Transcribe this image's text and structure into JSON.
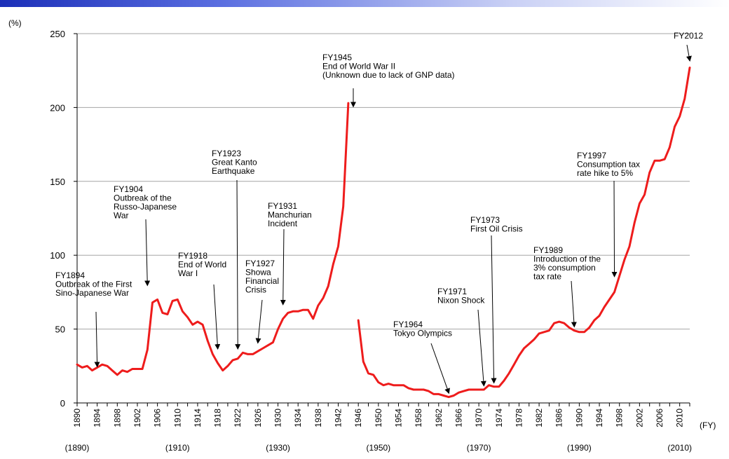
{
  "chart_data": {
    "type": "line",
    "ylabel": "(%)",
    "xlabel": "(FY)",
    "ylim": [
      0,
      250
    ],
    "xlim": [
      1890,
      2012
    ],
    "yticks": [
      0,
      50,
      100,
      150,
      200,
      250
    ],
    "xticks": [
      1890,
      1894,
      1898,
      1902,
      1906,
      1910,
      1914,
      1918,
      1922,
      1926,
      1930,
      1934,
      1938,
      1942,
      1946,
      1950,
      1954,
      1958,
      1962,
      1966,
      1970,
      1974,
      1978,
      1982,
      1986,
      1990,
      1994,
      1998,
      2002,
      2006,
      2010
    ],
    "decade_labels": [
      {
        "x": 1890,
        "text": "(1890)"
      },
      {
        "x": 1910,
        "text": "(1910)"
      },
      {
        "x": 1930,
        "text": "(1930)"
      },
      {
        "x": 1950,
        "text": "(1950)"
      },
      {
        "x": 1970,
        "text": "(1970)"
      },
      {
        "x": 1990,
        "text": "(1990)"
      },
      {
        "x": 2010,
        "text": "(2010)"
      }
    ],
    "grid": true,
    "line_color": "#ee1c1c",
    "series": [
      {
        "segment": 1,
        "points": [
          [
            1890,
            26
          ],
          [
            1891,
            24
          ],
          [
            1892,
            25
          ],
          [
            1893,
            22
          ],
          [
            1894,
            24
          ],
          [
            1895,
            26
          ],
          [
            1896,
            25
          ],
          [
            1897,
            22
          ],
          [
            1898,
            19
          ],
          [
            1899,
            22
          ],
          [
            1900,
            21
          ],
          [
            1901,
            23
          ],
          [
            1902,
            23
          ],
          [
            1903,
            23
          ],
          [
            1904,
            36
          ],
          [
            1905,
            68
          ],
          [
            1906,
            70
          ],
          [
            1907,
            61
          ],
          [
            1908,
            60
          ],
          [
            1909,
            69
          ],
          [
            1910,
            70
          ],
          [
            1911,
            62
          ],
          [
            1912,
            58
          ],
          [
            1913,
            53
          ],
          [
            1914,
            55
          ],
          [
            1915,
            53
          ],
          [
            1916,
            42
          ],
          [
            1917,
            33
          ],
          [
            1918,
            27
          ],
          [
            1919,
            22
          ],
          [
            1920,
            25
          ],
          [
            1921,
            29
          ],
          [
            1922,
            30
          ],
          [
            1923,
            34
          ],
          [
            1924,
            33
          ],
          [
            1925,
            33
          ],
          [
            1926,
            35
          ],
          [
            1927,
            37
          ],
          [
            1928,
            39
          ],
          [
            1929,
            41
          ],
          [
            1930,
            50
          ],
          [
            1931,
            57
          ],
          [
            1932,
            61
          ],
          [
            1933,
            62
          ],
          [
            1934,
            62
          ],
          [
            1935,
            63
          ],
          [
            1936,
            63
          ],
          [
            1937,
            57
          ],
          [
            1938,
            66
          ],
          [
            1939,
            71
          ],
          [
            1940,
            79
          ],
          [
            1941,
            94
          ],
          [
            1942,
            106
          ],
          [
            1943,
            133
          ],
          [
            1944,
            203
          ]
        ]
      },
      {
        "segment": 2,
        "points": [
          [
            1946,
            56
          ],
          [
            1947,
            28
          ],
          [
            1948,
            20
          ],
          [
            1949,
            19
          ],
          [
            1950,
            14
          ],
          [
            1951,
            12
          ],
          [
            1952,
            13
          ],
          [
            1953,
            12
          ],
          [
            1954,
            12
          ],
          [
            1955,
            12
          ],
          [
            1956,
            10
          ],
          [
            1957,
            9
          ],
          [
            1958,
            9
          ],
          [
            1959,
            9
          ],
          [
            1960,
            8
          ],
          [
            1961,
            6
          ],
          [
            1962,
            6
          ],
          [
            1963,
            5
          ],
          [
            1964,
            4
          ],
          [
            1965,
            5
          ],
          [
            1966,
            7
          ],
          [
            1967,
            8
          ],
          [
            1968,
            9
          ],
          [
            1969,
            9
          ],
          [
            1970,
            9
          ],
          [
            1971,
            9
          ],
          [
            1972,
            12
          ],
          [
            1973,
            11
          ],
          [
            1974,
            11
          ],
          [
            1975,
            15
          ],
          [
            1976,
            20
          ],
          [
            1977,
            26
          ],
          [
            1978,
            32
          ],
          [
            1979,
            37
          ],
          [
            1980,
            40
          ],
          [
            1981,
            43
          ],
          [
            1982,
            47
          ],
          [
            1983,
            48
          ],
          [
            1984,
            49
          ],
          [
            1985,
            54
          ],
          [
            1986,
            55
          ],
          [
            1987,
            54
          ],
          [
            1988,
            51
          ],
          [
            1989,
            49
          ],
          [
            1990,
            48
          ],
          [
            1991,
            48
          ],
          [
            1992,
            51
          ],
          [
            1993,
            56
          ],
          [
            1994,
            59
          ],
          [
            1995,
            65
          ],
          [
            1996,
            70
          ],
          [
            1997,
            75
          ],
          [
            1998,
            86
          ],
          [
            1999,
            97
          ],
          [
            2000,
            106
          ],
          [
            2001,
            122
          ],
          [
            2002,
            135
          ],
          [
            2003,
            141
          ],
          [
            2004,
            156
          ],
          [
            2005,
            164
          ],
          [
            2006,
            164
          ],
          [
            2007,
            165
          ],
          [
            2008,
            173
          ],
          [
            2009,
            187
          ],
          [
            2010,
            194
          ],
          [
            2011,
            206
          ],
          [
            2012,
            227
          ]
        ]
      }
    ],
    "annotations": [
      {
        "id": "fy1894",
        "lines": [
          "FY1894",
          "Outbreak of the First",
          "Sino-Japanese War"
        ],
        "target": [
          1894,
          24
        ]
      },
      {
        "id": "fy1904",
        "lines": [
          "FY1904",
          "Outbreak of the",
          "Russo-Japanese",
          "War"
        ],
        "target": [
          1904,
          79
        ]
      },
      {
        "id": "fy1918",
        "lines": [
          "FY1918",
          "End of World",
          "War I"
        ],
        "target": [
          1918,
          36
        ]
      },
      {
        "id": "fy1923",
        "lines": [
          "FY1923",
          "Great Kanto",
          "Earthquake"
        ],
        "target": [
          1922,
          36
        ]
      },
      {
        "id": "fy1927",
        "lines": [
          "FY1927",
          "Showa",
          "Financial",
          "Crisis"
        ],
        "target": [
          1926,
          40
        ]
      },
      {
        "id": "fy1931",
        "lines": [
          "FY1931",
          "Manchurian",
          "Incident"
        ],
        "target": [
          1931,
          66
        ]
      },
      {
        "id": "fy1945",
        "lines": [
          "FY1945",
          "End of World War II",
          "(Unknown due to lack of GNP data)"
        ],
        "target": [
          1945,
          200
        ]
      },
      {
        "id": "fy1964",
        "lines": [
          "FY1964",
          "Tokyo Olympics"
        ],
        "target": [
          1964,
          6
        ]
      },
      {
        "id": "fy1971",
        "lines": [
          "FY1971",
          "Nixon Shock"
        ],
        "target": [
          1971,
          11
        ]
      },
      {
        "id": "fy1973",
        "lines": [
          "FY1973",
          "First Oil Crisis"
        ],
        "target": [
          1973,
          13
        ]
      },
      {
        "id": "fy1989",
        "lines": [
          "FY1989",
          "Introduction of the",
          "3% consumption",
          "tax rate"
        ],
        "target": [
          1989,
          51
        ]
      },
      {
        "id": "fy1997",
        "lines": [
          "FY1997",
          "Consumption tax",
          "rate hike to 5%"
        ],
        "target": [
          1997,
          85
        ]
      },
      {
        "id": "fy2012",
        "lines": [
          "FY2012"
        ],
        "target": [
          2012,
          231
        ]
      }
    ]
  }
}
